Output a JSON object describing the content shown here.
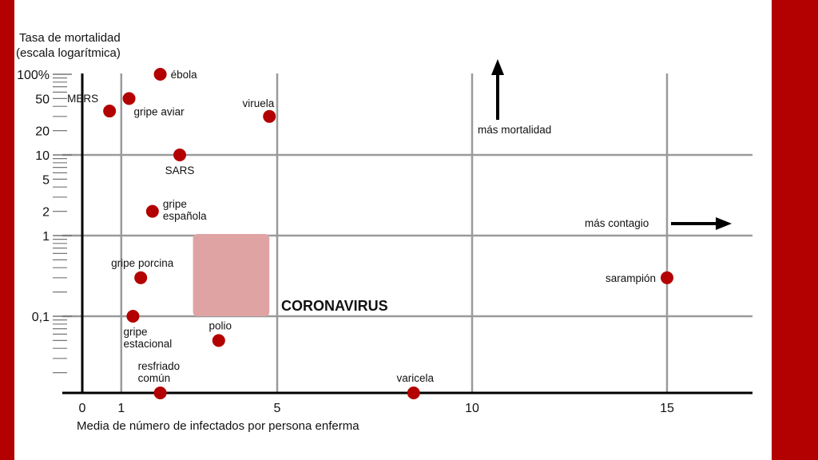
{
  "colors": {
    "frame": "#b30000",
    "point": "#b30000",
    "grid": "#9a9a9a",
    "axis": "#000000",
    "highlight_fill": "#e0a3a3",
    "highlight_text": "#cc1414"
  },
  "chart_data": {
    "type": "scatter",
    "ylabel_lines": [
      "Tasa de mortalidad",
      "(escala logarítmica)"
    ],
    "xlabel": "Media de número de infectados por persona enferma",
    "x_range": [
      -0.5,
      17.2
    ],
    "y_scale": "log",
    "y_range": [
      0.01,
      100
    ],
    "x_ticks": [
      {
        "value": 0,
        "label": "0"
      },
      {
        "value": 1,
        "label": "1"
      },
      {
        "value": 5,
        "label": "5"
      },
      {
        "value": 10,
        "label": "10"
      },
      {
        "value": 15,
        "label": "15"
      }
    ],
    "x_grid": [
      1,
      5,
      10,
      15
    ],
    "y_ticks": [
      {
        "value": 100,
        "label": "100%"
      },
      {
        "value": 50,
        "label": "50"
      },
      {
        "value": 20,
        "label": "20"
      },
      {
        "value": 10,
        "label": "10"
      },
      {
        "value": 5,
        "label": "5"
      },
      {
        "value": 2,
        "label": "2"
      },
      {
        "value": 1,
        "label": "1"
      },
      {
        "value": 0.1,
        "label": "0,1"
      }
    ],
    "y_grid": [
      10,
      1,
      0.1
    ],
    "points": [
      {
        "name": "ébola",
        "label_lines": [
          "ébola"
        ],
        "x": 2.0,
        "y": 100,
        "label_pos": "right"
      },
      {
        "name": "MERS",
        "label_lines": [
          "MERS"
        ],
        "x": 0.7,
        "y": 35,
        "label_pos": "above-left"
      },
      {
        "name": "gripe aviar",
        "label_lines": [
          "gripe aviar"
        ],
        "x": 1.2,
        "y": 50,
        "label_pos": "below-right"
      },
      {
        "name": "viruela",
        "label_lines": [
          "viruela"
        ],
        "x": 4.8,
        "y": 30,
        "label_pos": "above-left"
      },
      {
        "name": "SARS",
        "label_lines": [
          "SARS"
        ],
        "x": 2.5,
        "y": 10,
        "label_pos": "below"
      },
      {
        "name": "gripe española",
        "label_lines": [
          "gripe",
          "española"
        ],
        "x": 1.8,
        "y": 2,
        "label_pos": "right"
      },
      {
        "name": "gripe porcina",
        "label_lines": [
          "gripe porcina"
        ],
        "x": 1.5,
        "y": 0.3,
        "label_pos": "above"
      },
      {
        "name": "gripe estacional",
        "label_lines": [
          "gripe",
          "estacional"
        ],
        "x": 1.3,
        "y": 0.1,
        "label_pos": "below"
      },
      {
        "name": "polio",
        "label_lines": [
          "polio"
        ],
        "x": 3.5,
        "y": 0.05,
        "label_pos": "above"
      },
      {
        "name": "resfriado común",
        "label_lines": [
          "resfriado",
          "común"
        ],
        "x": 2.0,
        "y": 0.0105,
        "label_pos": "above"
      },
      {
        "name": "varicela",
        "label_lines": [
          "varicela"
        ],
        "x": 8.5,
        "y": 0.0105,
        "label_pos": "above"
      },
      {
        "name": "sarampión",
        "label_lines": [
          "sarampión"
        ],
        "x": 15.0,
        "y": 0.3,
        "label_pos": "left"
      }
    ],
    "highlight": {
      "label": "CORONAVIRUS",
      "x_range": [
        2.0,
        4.0
      ],
      "y_range": [
        0.1,
        1.0
      ]
    },
    "annotations": {
      "mortality": "más mortalidad",
      "contagion": "más contagio"
    }
  }
}
